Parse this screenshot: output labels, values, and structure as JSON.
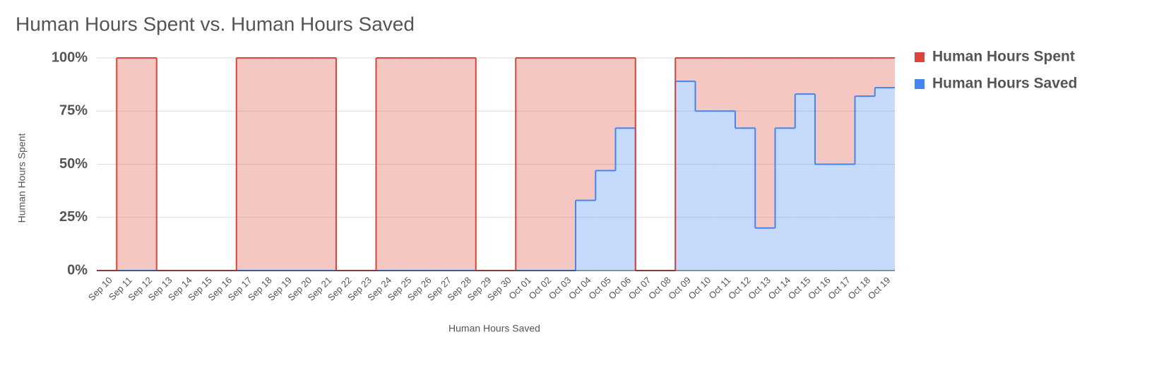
{
  "chart_data": {
    "type": "stepped-area-stacked",
    "title": "Human Hours Spent vs. Human Hours Saved",
    "x_label": "Human Hours Saved",
    "y_label": "Human Hours Spent",
    "categories": [
      "Sep 10",
      "Sep 11",
      "Sep 12",
      "Sep 13",
      "Sep 14",
      "Sep 15",
      "Sep 16",
      "Sep 17",
      "Sep 18",
      "Sep 19",
      "Sep 20",
      "Sep 21",
      "Sep 22",
      "Sep 23",
      "Sep 24",
      "Sep 25",
      "Sep 26",
      "Sep 27",
      "Sep 28",
      "Sep 29",
      "Sep 30",
      "Oct 01",
      "Oct 02",
      "Oct 03",
      "Oct 04",
      "Oct 05",
      "Oct 06",
      "Oct 07",
      "Oct 08",
      "Oct 09",
      "Oct 10",
      "Oct 11",
      "Oct 12",
      "Oct 13",
      "Oct 14",
      "Oct 15",
      "Oct 16",
      "Oct 17",
      "Oct 18",
      "Oct 19"
    ],
    "series": [
      {
        "name": "Human Hours Spent",
        "color": "#db4437",
        "values": [
          0,
          100,
          100,
          0,
          0,
          0,
          0,
          100,
          100,
          100,
          100,
          100,
          0,
          0,
          100,
          100,
          100,
          100,
          100,
          0,
          0,
          100,
          100,
          100,
          67,
          53,
          33,
          0,
          0,
          11,
          25,
          25,
          33,
          80,
          33,
          17,
          50,
          50,
          18,
          14
        ]
      },
      {
        "name": "Human Hours Saved",
        "color": "#4285f4",
        "values": [
          0,
          0,
          0,
          0,
          0,
          0,
          0,
          0,
          0,
          0,
          0,
          0,
          0,
          0,
          0,
          0,
          0,
          0,
          0,
          0,
          0,
          0,
          0,
          0,
          33,
          47,
          67,
          0,
          0,
          89,
          75,
          75,
          67,
          20,
          67,
          83,
          50,
          50,
          82,
          86
        ]
      }
    ],
    "ylim": [
      0,
      100
    ],
    "yticks": [
      {
        "value": 0,
        "label": "0%"
      },
      {
        "value": 25,
        "label": "25%"
      },
      {
        "value": 50,
        "label": "50%"
      },
      {
        "value": 75,
        "label": "75%"
      },
      {
        "value": 100,
        "label": "100%"
      }
    ],
    "grid": true,
    "legend": "right"
  }
}
